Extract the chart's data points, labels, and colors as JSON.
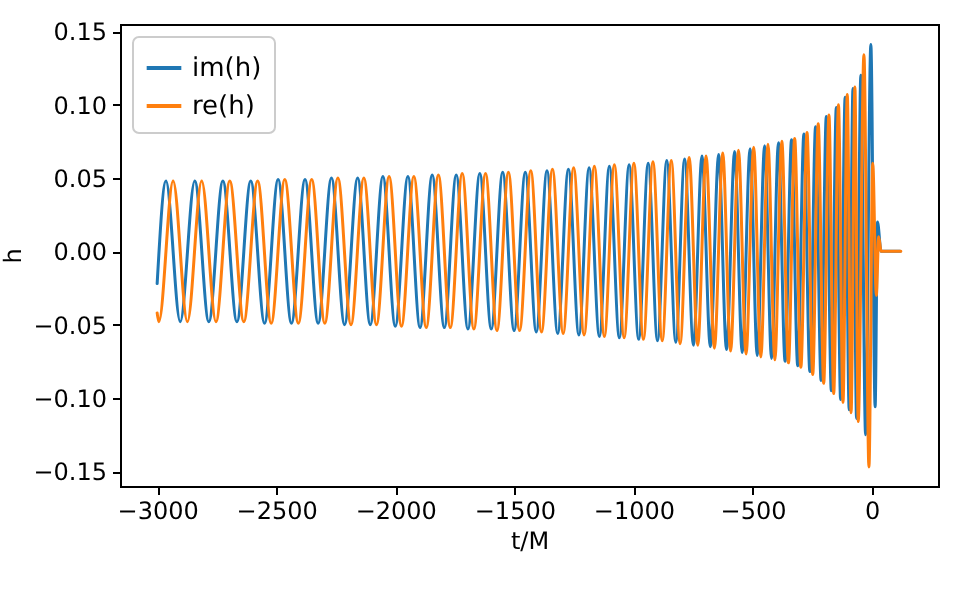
{
  "chart_data": {
    "type": "line",
    "xlabel": "t/M",
    "ylabel": "h",
    "legend": "top left",
    "grid": false,
    "xlim": [
      -3156,
      279
    ],
    "ylim": [
      -0.16,
      0.155
    ],
    "xticks": [
      {
        "value": -3000,
        "label": "−3000"
      },
      {
        "value": -2500,
        "label": "−2500"
      },
      {
        "value": -2000,
        "label": "−2000"
      },
      {
        "value": -1500,
        "label": "−1500"
      },
      {
        "value": -1000,
        "label": "−1000"
      },
      {
        "value": -500,
        "label": "−500"
      },
      0
    ],
    "yticks": [
      {
        "value": -0.15,
        "label": "−0.15"
      },
      {
        "value": -0.1,
        "label": "−0.10"
      },
      {
        "value": -0.05,
        "label": "−0.05"
      },
      {
        "value": 0,
        "label": "0.00"
      },
      {
        "value": 0.05,
        "label": "0.05"
      },
      {
        "value": 0.1,
        "label": "0.10"
      },
      {
        "value": 0.15,
        "label": "0.15"
      }
    ],
    "series": [
      {
        "name": "im(h)",
        "color": "#1f77b4",
        "x": [
          -3000,
          -2963,
          -2903,
          -2842,
          -2783,
          -2724,
          -2665,
          -2607,
          -2549,
          -2492,
          -2436,
          -2379,
          -2324,
          -2268,
          -2213,
          -2158,
          -2105,
          -2052,
          -2000,
          -1947,
          -1896,
          -1845,
          -1794,
          -1744,
          -1695,
          -1645,
          -1597,
          -1549,
          -1501,
          -1454,
          -1408,
          -1363,
          -1318,
          -1273,
          -1229,
          -1186,
          -1143,
          -1101,
          -1059,
          -1018,
          -978,
          -938,
          -899,
          -860,
          -822,
          -785,
          -748,
          -712,
          -677,
          -642,
          -609,
          -575,
          -543,
          -510,
          -480,
          -449,
          -420,
          -391,
          -363,
          -336,
          -310,
          -284,
          -259,
          -235,
          -212,
          -190,
          -169,
          -148,
          -130,
          -111,
          -94,
          -78,
          -63,
          -45,
          -25,
          -3,
          15,
          25,
          40,
          120
        ],
        "values": [
          -0.022,
          0.048,
          -0.048,
          0.048,
          -0.048,
          0.048,
          -0.048,
          0.048,
          -0.049,
          0.049,
          -0.049,
          0.049,
          -0.049,
          0.05,
          -0.05,
          0.05,
          -0.05,
          0.051,
          -0.051,
          0.051,
          -0.052,
          0.052,
          -0.052,
          0.052,
          -0.053,
          0.053,
          -0.053,
          0.054,
          -0.054,
          0.054,
          -0.055,
          0.055,
          -0.056,
          0.056,
          -0.057,
          0.057,
          -0.058,
          0.058,
          -0.059,
          0.059,
          -0.06,
          0.06,
          -0.061,
          0.062,
          -0.062,
          0.063,
          -0.064,
          0.065,
          -0.065,
          0.066,
          -0.067,
          0.068,
          -0.069,
          0.07,
          -0.071,
          0.072,
          -0.073,
          0.074,
          -0.075,
          0.076,
          -0.078,
          0.08,
          -0.082,
          0.085,
          -0.088,
          0.092,
          -0.095,
          0.098,
          -0.101,
          0.105,
          -0.108,
          0.111,
          -0.114,
          0.12,
          -0.125,
          0.141,
          -0.106,
          0.02,
          0,
          0
        ]
      },
      {
        "name": "re(h)",
        "color": "#ff7f0e",
        "x": [
          -3000,
          -2993,
          -2933,
          -2873,
          -2813,
          -2753,
          -2695,
          -2636,
          -2578,
          -2521,
          -2464,
          -2407,
          -2351,
          -2296,
          -2241,
          -2186,
          -2132,
          -2079,
          -2026,
          -1974,
          -1922,
          -1870,
          -1819,
          -1769,
          -1719,
          -1670,
          -1621,
          -1573,
          -1525,
          -1478,
          -1431,
          -1386,
          -1340,
          -1295,
          -1251,
          -1207,
          -1164,
          -1122,
          -1080,
          -1039,
          -998,
          -958,
          -918,
          -879,
          -841,
          -804,
          -766,
          -730,
          -695,
          -660,
          -625,
          -592,
          -559,
          -527,
          -495,
          -465,
          -435,
          -406,
          -377,
          -349,
          -323,
          -297,
          -271,
          -247,
          -224,
          -201,
          -179,
          -159,
          -139,
          -120,
          -102,
          -86,
          -70,
          -56,
          -32,
          -11,
          5,
          20,
          30,
          40,
          123
        ],
        "values": [
          -0.042,
          -0.048,
          0.048,
          -0.048,
          0.048,
          -0.048,
          0.048,
          -0.048,
          0.048,
          -0.049,
          0.049,
          -0.049,
          0.049,
          -0.049,
          0.05,
          -0.05,
          0.05,
          -0.05,
          0.051,
          -0.051,
          0.051,
          -0.052,
          0.052,
          -0.052,
          0.053,
          -0.053,
          0.053,
          -0.054,
          0.054,
          -0.054,
          0.055,
          -0.055,
          0.056,
          -0.056,
          0.057,
          -0.057,
          0.058,
          -0.058,
          0.059,
          -0.059,
          0.06,
          -0.06,
          0.061,
          -0.061,
          0.062,
          -0.063,
          0.064,
          -0.064,
          0.065,
          -0.066,
          0.067,
          -0.068,
          0.069,
          -0.07,
          0.071,
          -0.072,
          0.073,
          -0.074,
          0.075,
          -0.076,
          0.077,
          -0.079,
          0.081,
          -0.084,
          0.087,
          -0.09,
          0.093,
          -0.097,
          0.1,
          -0.103,
          0.107,
          -0.11,
          0.112,
          -0.116,
          0.134,
          -0.147,
          0.06,
          -0.03,
          0.01,
          0,
          0
        ]
      }
    ]
  }
}
